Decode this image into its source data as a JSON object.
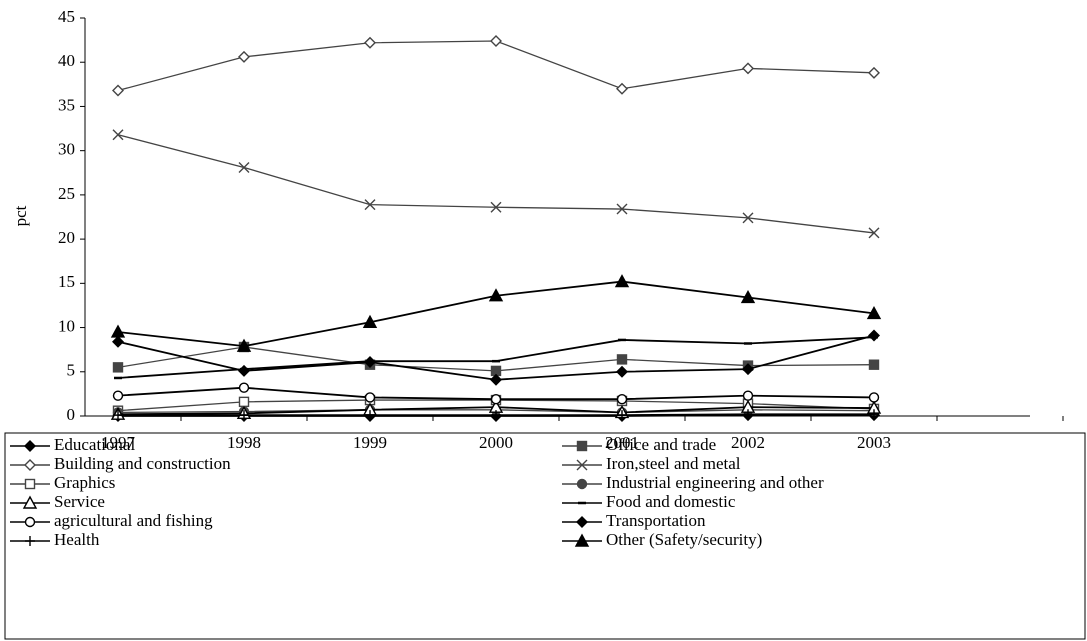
{
  "chart_data": {
    "type": "line",
    "y_label": "pct",
    "categories": [
      "1997",
      "1998",
      "1999",
      "2000",
      "2001",
      "2002",
      "2003",
      null
    ],
    "ylim": [
      0,
      45
    ],
    "yticks": [
      0,
      5,
      10,
      15,
      20,
      25,
      30,
      35,
      40,
      45
    ],
    "series": [
      {
        "name": "Educational",
        "color": "#000000",
        "marker": "diamond",
        "filled": true,
        "values": [
          0,
          0,
          0,
          0,
          0,
          0.1,
          0.1,
          null
        ]
      },
      {
        "name": "Office and trade",
        "color": "#444444",
        "marker": "square",
        "filled": true,
        "values": [
          5.5,
          7.8,
          5.8,
          5.1,
          6.4,
          5.7,
          5.8,
          null
        ]
      },
      {
        "name": "Building and construction",
        "color": "#444444",
        "marker": "diamond",
        "filled": false,
        "values": [
          36.8,
          40.6,
          42.2,
          42.4,
          37.0,
          39.3,
          38.8,
          null
        ]
      },
      {
        "name": "Iron,steel and metal",
        "color": "#444444",
        "marker": "x",
        "filled": false,
        "values": [
          31.8,
          28.1,
          23.9,
          23.6,
          23.4,
          22.4,
          20.7,
          null
        ]
      },
      {
        "name": "Graphics",
        "color": "#444444",
        "marker": "square",
        "filled": false,
        "values": [
          0.6,
          1.6,
          1.8,
          1.8,
          1.7,
          1.4,
          0.8,
          null
        ]
      },
      {
        "name": "Industrial engineering and other",
        "color": "#444444",
        "marker": "circle",
        "filled": true,
        "values": [
          0.4,
          0.5,
          0.7,
          0.7,
          0.4,
          0.7,
          0.6,
          null
        ]
      },
      {
        "name": "Service",
        "color": "#000000",
        "marker": "triangle",
        "filled": false,
        "values": [
          0.2,
          0.3,
          0.7,
          1.0,
          0.4,
          1.0,
          0.9,
          null
        ]
      },
      {
        "name": "Food and domestic",
        "color": "#000000",
        "marker": "dash",
        "filled": true,
        "values": [
          4.3,
          5.3,
          6.2,
          6.2,
          8.6,
          8.2,
          8.9,
          null
        ]
      },
      {
        "name": "agricultural and fishing",
        "color": "#000000",
        "marker": "circle",
        "filled": false,
        "values": [
          2.3,
          3.2,
          2.1,
          1.9,
          1.9,
          2.3,
          2.1,
          null
        ]
      },
      {
        "name": "Transportation",
        "color": "#000000",
        "marker": "diamond",
        "filled": true,
        "values": [
          8.4,
          5.1,
          6.1,
          4.1,
          5.0,
          5.3,
          9.1,
          null
        ]
      },
      {
        "name": "Health",
        "color": "#000000",
        "marker": "plus",
        "filled": false,
        "values": [
          0.1,
          0.1,
          0.1,
          0.1,
          0.1,
          0.2,
          0.2,
          null
        ]
      },
      {
        "name": "Other (Safety/security)",
        "color": "#000000",
        "marker": "triangle",
        "filled": true,
        "values": [
          9.5,
          7.9,
          10.6,
          13.6,
          15.2,
          13.4,
          11.6,
          null
        ]
      }
    ]
  }
}
